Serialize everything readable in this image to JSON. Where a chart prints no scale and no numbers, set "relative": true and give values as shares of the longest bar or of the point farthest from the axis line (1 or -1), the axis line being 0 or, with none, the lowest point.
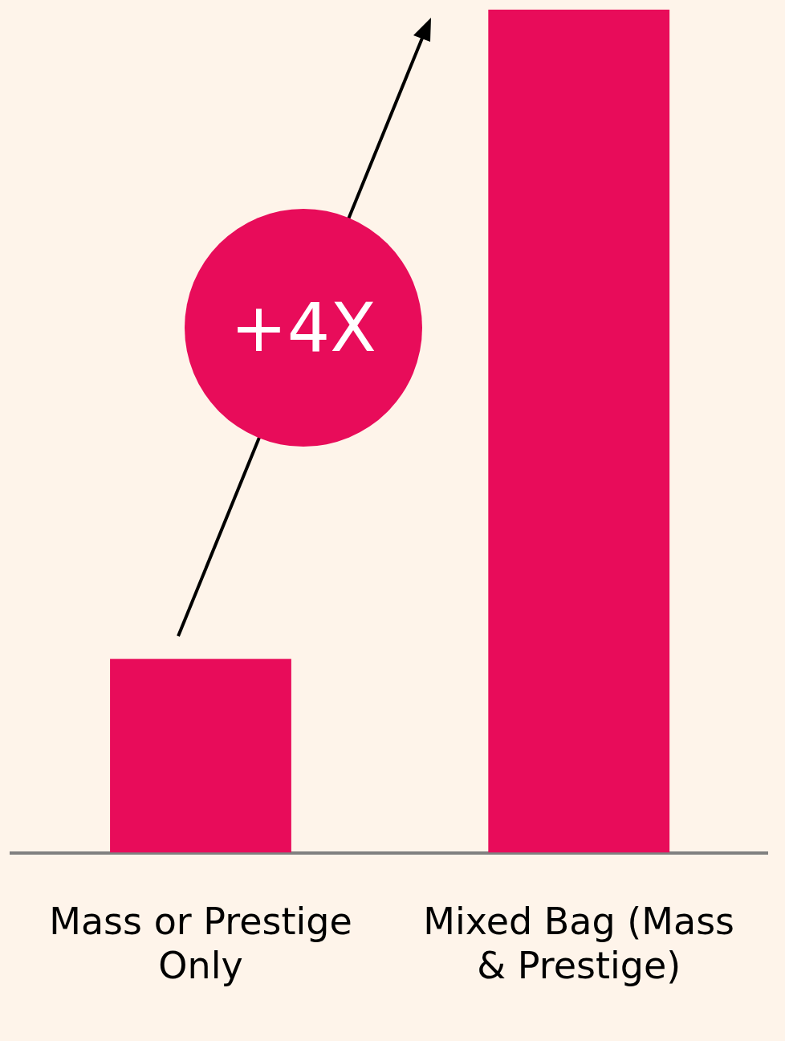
{
  "chart_data": {
    "type": "bar",
    "relative": true,
    "categories": [
      "Mass or Prestige Only",
      "Mixed Bag (Mass & Prestige)"
    ],
    "values": [
      0.23,
      1
    ],
    "color": "#e80c5a",
    "annotations": [
      "+4X"
    ],
    "grid": false,
    "legend": false
  }
}
